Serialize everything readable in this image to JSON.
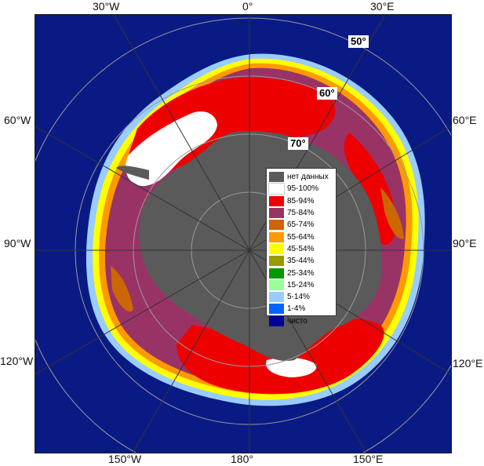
{
  "map": {
    "longitude_labels": {
      "top": [
        "30°W",
        "0°",
        "30°E"
      ],
      "left": [
        "60°W",
        "90°W",
        "120°W"
      ],
      "right": [
        "60°E",
        "90°E",
        "120°E"
      ],
      "bottom": [
        "150°W",
        "180°",
        "150°E"
      ]
    },
    "latitude_labels": [
      "50°",
      "60°",
      "70°"
    ],
    "colors": {
      "ocean": "#0a1a84",
      "land_no_data": "#5a5a5a",
      "frame": "#1a1a1a",
      "grid": "#9a9a9a"
    }
  },
  "legend": {
    "items": [
      {
        "label": "нет данных",
        "color": "#5a5a5a"
      },
      {
        "label": "95-100%",
        "color": "#ffffff"
      },
      {
        "label": "85-94%",
        "color": "#ee0000"
      },
      {
        "label": "75-84%",
        "color": "#993366"
      },
      {
        "label": "65-74%",
        "color": "#cc6600"
      },
      {
        "label": "55-64%",
        "color": "#ff9900"
      },
      {
        "label": "45-54%",
        "color": "#ffff00"
      },
      {
        "label": "35-44%",
        "color": "#999900"
      },
      {
        "label": "25-34%",
        "color": "#009900"
      },
      {
        "label": "15-24%",
        "color": "#99ff99"
      },
      {
        "label": "5-14%",
        "color": "#99ccff"
      },
      {
        "label": "1-4%",
        "color": "#0066ff"
      },
      {
        "label": "чисто",
        "color": "#000099"
      }
    ]
  }
}
